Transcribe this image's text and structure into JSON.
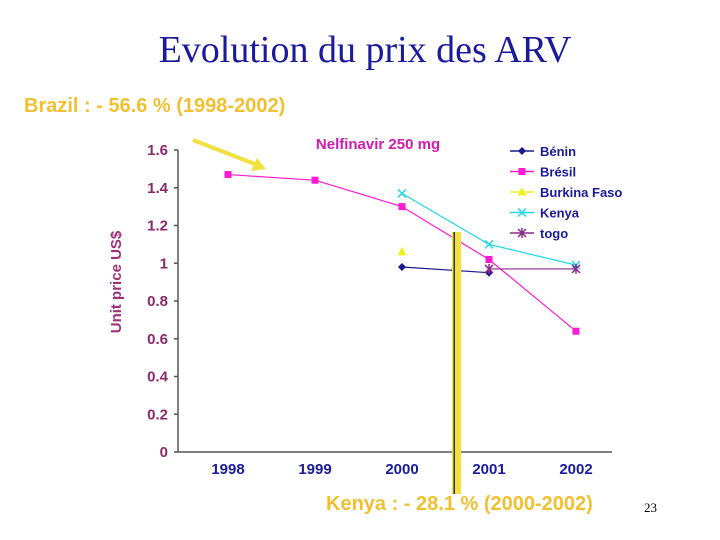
{
  "slide": {
    "title": "Evolution du prix des ARV",
    "brazil_note": "Brazil : - 56.6 % (1998-2002)",
    "kenya_note": "Kenya : - 28.1 % (2000-2002)",
    "slide_number": "23",
    "annotation_color": "#f0e040"
  },
  "chart_data": {
    "type": "line",
    "title": "Nelfinavir 250 mg",
    "xlabel": "",
    "ylabel": "Unit price US$",
    "categories": [
      "1998",
      "1999",
      "2000",
      "2001",
      "2002"
    ],
    "ylim": [
      0,
      1.6
    ],
    "yticks": [
      "0",
      "0.2",
      "0.4",
      "0.6",
      "0.8",
      "1",
      "1.2",
      "1.4",
      "1.6"
    ],
    "ytick_values": [
      0,
      0.2,
      0.4,
      0.6,
      0.8,
      1,
      1.2,
      1.4,
      1.6
    ],
    "grid": false,
    "legend_position": "top-right",
    "series": [
      {
        "name": "Bénin",
        "values": [
          null,
          null,
          0.98,
          0.95,
          null
        ],
        "color": "#1a1a8c",
        "marker": "diamond"
      },
      {
        "name": "Brésil",
        "values": [
          1.47,
          1.44,
          1.3,
          1.02,
          0.64
        ],
        "color": "#ff1ad0",
        "marker": "square"
      },
      {
        "name": "Burkina Faso",
        "values": [
          null,
          null,
          1.06,
          null,
          null
        ],
        "color": "#f0f020",
        "marker": "triangle"
      },
      {
        "name": "Kenya",
        "values": [
          null,
          null,
          1.37,
          1.1,
          0.99
        ],
        "color": "#20d8e8",
        "marker": "x"
      },
      {
        "name": "togo",
        "values": [
          null,
          null,
          null,
          0.97,
          0.97
        ],
        "color": "#8a2a8a",
        "marker": "star"
      }
    ]
  }
}
